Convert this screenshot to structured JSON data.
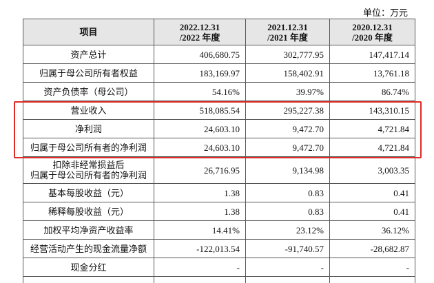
{
  "unit": "单位：万元",
  "table": {
    "header": [
      [
        "项目"
      ],
      [
        "2022.12.31",
        "/2022 年度"
      ],
      [
        "2021.12.31",
        "/2021 年度"
      ],
      [
        "2020.12.31",
        "/2020 年度"
      ]
    ],
    "rows": [
      {
        "label": [
          "资产总计"
        ],
        "values": [
          "406,680.75",
          "302,777.95",
          "147,417.14"
        ]
      },
      {
        "label": [
          "归属于母公司所有者权益"
        ],
        "values": [
          "183,169.97",
          "158,402.91",
          "13,761.18"
        ]
      },
      {
        "label": [
          "资产负债率（母公司）"
        ],
        "values": [
          "54.16%",
          "39.97%",
          "86.74%"
        ]
      },
      {
        "label": [
          "营业收入"
        ],
        "values": [
          "518,085.54",
          "295,227.38",
          "143,310.15"
        ]
      },
      {
        "label": [
          "净利润"
        ],
        "values": [
          "24,603.10",
          "9,472.70",
          "4,721.84"
        ]
      },
      {
        "label": [
          "归属于母公司所有者的净利润"
        ],
        "values": [
          "24,603.10",
          "9,472.70",
          "4,721.84"
        ]
      },
      {
        "label": [
          "扣除非经常损益后",
          "归属于母公司所有者的净利润"
        ],
        "values": [
          "26,716.95",
          "9,134.98",
          "3,003.35"
        ]
      },
      {
        "label": [
          "基本每股收益（元）"
        ],
        "values": [
          "1.38",
          "0.83",
          "0.41"
        ]
      },
      {
        "label": [
          "稀释每股收益（元）"
        ],
        "values": [
          "1.38",
          "0.83",
          "0.41"
        ]
      },
      {
        "label": [
          "加权平均净资产收益率"
        ],
        "values": [
          "14.41%",
          "23.12%",
          "36.12%"
        ]
      },
      {
        "label": [
          "经营活动产生的现金流量净额"
        ],
        "values": [
          "-122,013.54",
          "-91,740.57",
          "-28,682.87"
        ]
      },
      {
        "label": [
          "现金分红"
        ],
        "values": [
          "-",
          "-",
          "-"
        ]
      }
    ]
  }
}
